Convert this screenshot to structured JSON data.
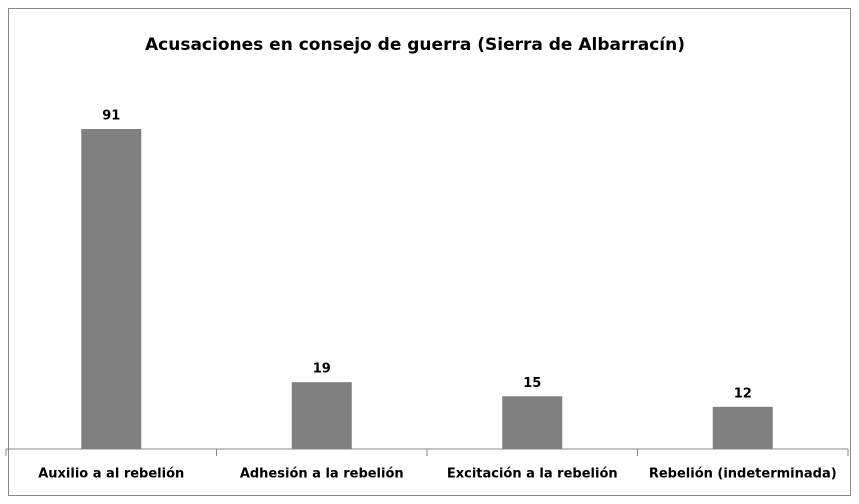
{
  "chart_data": {
    "type": "bar",
    "title": "Acusaciones en consejo de guerra (Sierra de Albarracín)",
    "categories": [
      "Auxilio a al rebelión",
      "Adhesión a la rebelión",
      "Excitación a la rebelión",
      "Rebelión (indeterminada)"
    ],
    "values": [
      91,
      19,
      15,
      12
    ],
    "color": "#808080"
  }
}
